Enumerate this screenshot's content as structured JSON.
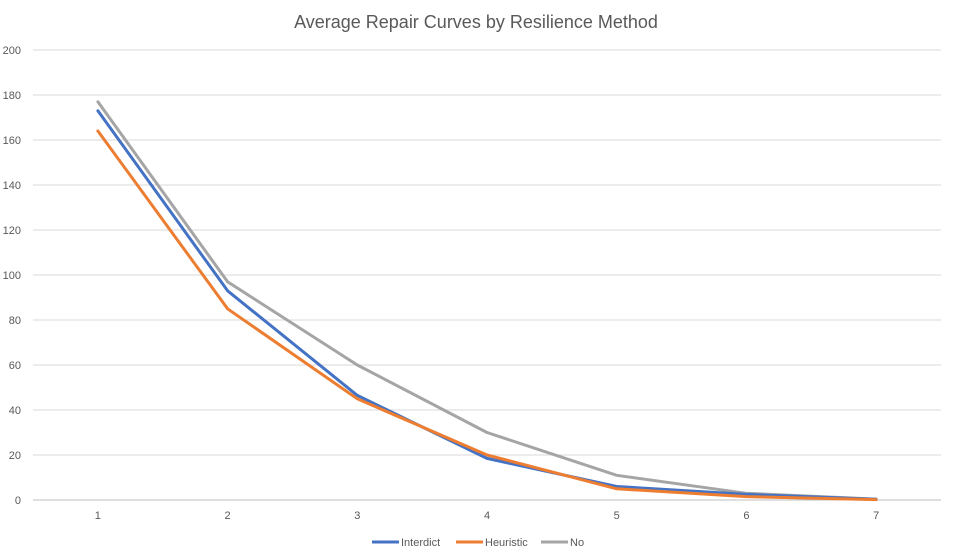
{
  "chart_data": {
    "type": "line",
    "title": "Average Repair Curves by Resilience Method",
    "xlabel": "",
    "ylabel": "",
    "x": [
      1,
      2,
      3,
      4,
      5,
      6,
      7
    ],
    "ylim": [
      0,
      200
    ],
    "yticks": [
      0,
      20,
      40,
      60,
      80,
      100,
      120,
      140,
      160,
      180,
      200
    ],
    "grid": true,
    "legend_position": "bottom",
    "series": [
      {
        "name": "Interdict",
        "color": "#4472C4",
        "values": [
          173,
          93,
          46.5,
          18.5,
          6,
          2.5,
          0.3
        ]
      },
      {
        "name": "Heuristic",
        "color": "#ED7D31",
        "values": [
          164,
          85,
          45,
          20,
          5,
          1.5,
          0.2
        ]
      },
      {
        "name": "No",
        "color": "#A5A5A5",
        "values": [
          177,
          97,
          60,
          30,
          11,
          3,
          0.4
        ]
      }
    ]
  }
}
